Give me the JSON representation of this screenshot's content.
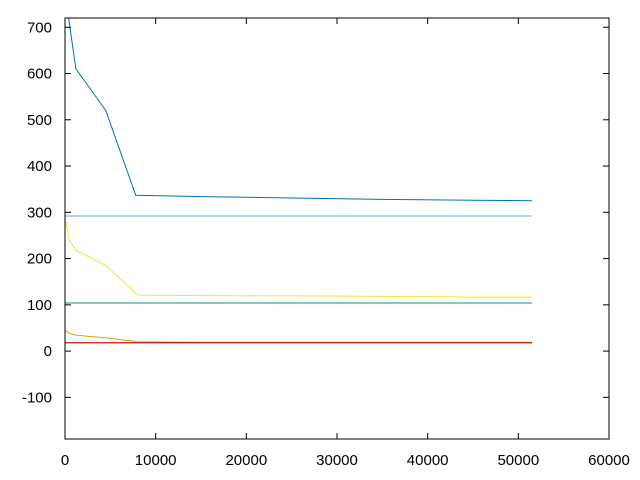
{
  "chart_data": {
    "type": "line",
    "title": "",
    "xlabel": "",
    "ylabel": "",
    "xlim": [
      0,
      60000
    ],
    "ylim": [
      -190,
      720
    ],
    "grid": false,
    "legend": "none",
    "x_ticks": [
      "0",
      "10000",
      "20000",
      "30000",
      "40000",
      "50000",
      "60000"
    ],
    "y_ticks": [
      "-100",
      "0",
      "100",
      "200",
      "300",
      "400",
      "500",
      "600",
      "700"
    ],
    "x_tick_values": [
      0,
      10000,
      20000,
      30000,
      40000,
      50000,
      60000
    ],
    "y_tick_values": [
      -100,
      0,
      100,
      200,
      300,
      400,
      500,
      600,
      700
    ],
    "series": [
      {
        "color": "#0072b2",
        "x": [
          400,
          1200,
          4500,
          7800,
          15000,
          25000,
          35000,
          45000,
          51500
        ],
        "y": [
          720,
          610,
          520,
          337,
          334,
          331,
          328,
          326,
          325
        ]
      },
      {
        "color": "#56b4e9",
        "x": [
          0,
          51500
        ],
        "y": [
          292,
          292
        ]
      },
      {
        "color": "#f0e442",
        "x": [
          100,
          500,
          1200,
          4500,
          8000,
          15000,
          30000,
          45000,
          51500
        ],
        "y": [
          280,
          240,
          218,
          185,
          121,
          120,
          119,
          117,
          117
        ]
      },
      {
        "color": "#009e73",
        "x": [
          0,
          51500
        ],
        "y": [
          104,
          104
        ]
      },
      {
        "color": "#e69f00",
        "x": [
          0,
          300,
          1000,
          2500,
          4500,
          6500,
          8000,
          15000,
          51500
        ],
        "y": [
          46,
          40,
          35,
          32,
          29,
          24,
          20,
          19,
          19
        ]
      },
      {
        "color": "#000000",
        "x": [
          0,
          51500
        ],
        "y": [
          18,
          18
        ]
      },
      {
        "color": "#e51e10",
        "x": [
          0,
          51500
        ],
        "y": [
          18,
          18
        ]
      }
    ]
  }
}
